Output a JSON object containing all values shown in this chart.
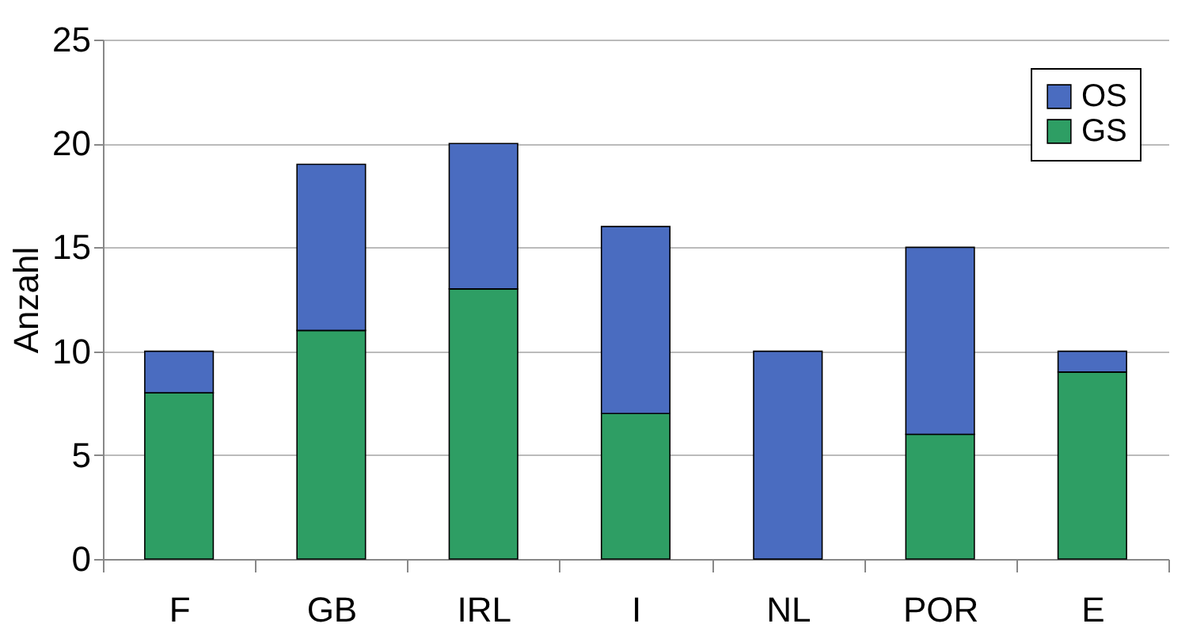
{
  "chart_data": {
    "type": "bar",
    "stacked": true,
    "ylabel": "Anzahl",
    "categories": [
      "F",
      "GB",
      "IRL",
      "I",
      "NL",
      "POR",
      "E"
    ],
    "series": [
      {
        "name": "GS",
        "color": "#2e9e64",
        "values": [
          8,
          11,
          13,
          7,
          0,
          6,
          9
        ]
      },
      {
        "name": "OS",
        "color": "#4a6cc0",
        "values": [
          2,
          8,
          7,
          9,
          10,
          9,
          1
        ]
      }
    ],
    "ylim": [
      0,
      25
    ],
    "yticks": [
      0,
      5,
      10,
      15,
      20,
      25
    ],
    "grid": "y",
    "legend": "top right"
  }
}
